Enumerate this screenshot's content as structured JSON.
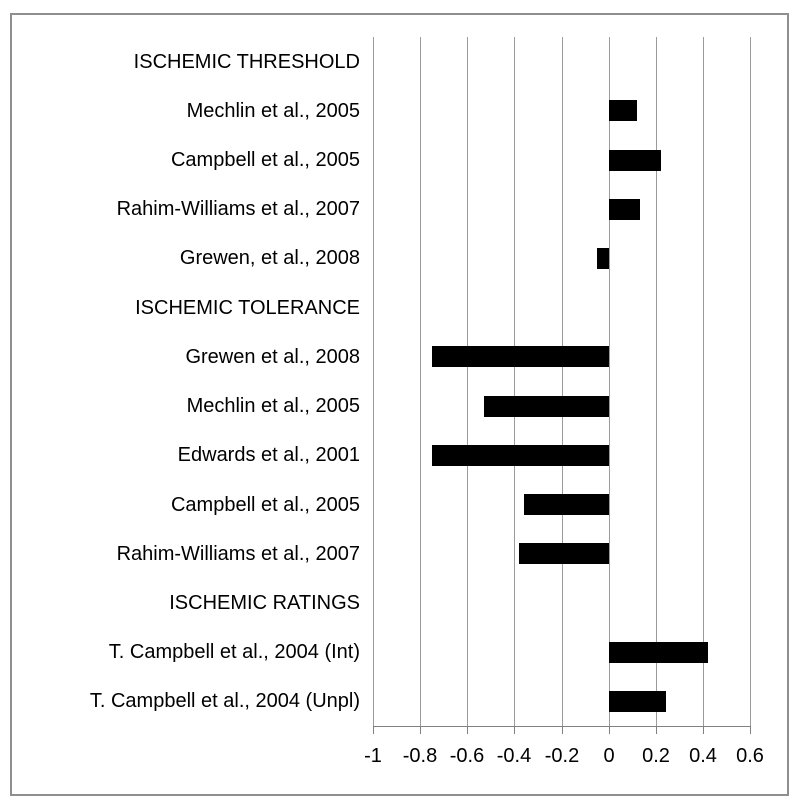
{
  "chart_data": {
    "type": "bar",
    "orientation": "horizontal",
    "title": "",
    "xlabel": "",
    "ylabel": "",
    "xlim": [
      -1,
      0.76
    ],
    "grid": true,
    "legend": false,
    "rows": [
      {
        "label": "ISCHEMIC THRESHOLD",
        "value": null,
        "is_header": true
      },
      {
        "label": "Mechlin et al., 2005",
        "value": 0.12,
        "is_header": false
      },
      {
        "label": "Campbell et al., 2005",
        "value": 0.22,
        "is_header": false
      },
      {
        "label": "Rahim-Williams et al., 2007",
        "value": 0.13,
        "is_header": false
      },
      {
        "label": "Grewen, et al., 2008",
        "value": -0.05,
        "is_header": false
      },
      {
        "label": "ISCHEMIC TOLERANCE",
        "value": null,
        "is_header": true
      },
      {
        "label": "Grewen et al., 2008",
        "value": -0.75,
        "is_header": false
      },
      {
        "label": "Mechlin et al., 2005",
        "value": -0.53,
        "is_header": false
      },
      {
        "label": "Edwards et al., 2001",
        "value": -0.75,
        "is_header": false
      },
      {
        "label": "Campbell et al., 2005",
        "value": -0.36,
        "is_header": false
      },
      {
        "label": "Rahim-Williams et al., 2007",
        "value": -0.38,
        "is_header": false
      },
      {
        "label": "ISCHEMIC RATINGS",
        "value": null,
        "is_header": true
      },
      {
        "label": "T. Campbell et al., 2004 (Int)",
        "value": 0.42,
        "is_header": false
      },
      {
        "label": "T. Campbell et al., 2004 (Unpl)",
        "value": 0.24,
        "is_header": false
      }
    ],
    "x_ticks": [
      -1,
      -0.8,
      -0.6,
      -0.4,
      -0.2,
      0,
      0.2,
      0.4,
      0.6
    ],
    "x_tick_labels": [
      "-1",
      "-0.8",
      "-0.6",
      "-0.4",
      "-0.2",
      "0",
      "0.2",
      "0.4",
      "0.6"
    ],
    "colors": {
      "bar": "#000000",
      "gridline": "#9b9b9b",
      "axis": "#808080",
      "frame": "#8f8f8f",
      "text": "#000000",
      "background": "#ffffff"
    }
  }
}
